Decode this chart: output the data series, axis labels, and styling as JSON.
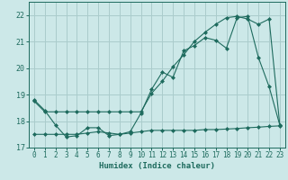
{
  "xlabel": "Humidex (Indice chaleur)",
  "background_color": "#cce8e8",
  "grid_color": "#aacccc",
  "line_color": "#1e6b5e",
  "xlim": [
    -0.5,
    23.5
  ],
  "ylim": [
    17.0,
    22.5
  ],
  "yticks": [
    17,
    18,
    19,
    20,
    21,
    22
  ],
  "xticks": [
    0,
    1,
    2,
    3,
    4,
    5,
    6,
    7,
    8,
    9,
    10,
    11,
    12,
    13,
    14,
    15,
    16,
    17,
    18,
    19,
    20,
    21,
    22,
    23
  ],
  "line1_x": [
    0,
    1,
    2,
    3,
    4,
    5,
    6,
    7,
    8,
    9,
    10,
    11,
    12,
    13,
    14,
    15,
    16,
    17,
    18,
    19,
    20,
    21,
    22,
    23
  ],
  "line1_y": [
    18.8,
    18.4,
    17.85,
    17.4,
    17.45,
    17.75,
    17.75,
    17.45,
    17.5,
    17.6,
    18.3,
    19.2,
    19.85,
    19.65,
    20.65,
    20.85,
    21.15,
    21.05,
    20.75,
    21.9,
    21.95,
    20.4,
    19.3,
    17.85
  ],
  "line2_x": [
    0,
    1,
    2,
    3,
    4,
    5,
    6,
    7,
    8,
    9,
    10,
    11,
    12,
    13,
    14,
    15,
    16,
    17,
    18,
    19,
    20,
    21,
    22,
    23
  ],
  "line2_y": [
    18.75,
    18.35,
    18.35,
    18.35,
    18.35,
    18.35,
    18.35,
    18.35,
    18.35,
    18.35,
    18.35,
    19.05,
    19.5,
    20.05,
    20.5,
    21.0,
    21.35,
    21.65,
    21.9,
    21.95,
    21.85,
    21.65,
    21.85,
    17.85
  ],
  "line3_x": [
    0,
    1,
    2,
    3,
    4,
    5,
    6,
    7,
    8,
    9,
    10,
    11,
    12,
    13,
    14,
    15,
    16,
    17,
    18,
    19,
    20,
    21,
    22,
    23
  ],
  "line3_y": [
    17.5,
    17.5,
    17.5,
    17.5,
    17.5,
    17.55,
    17.6,
    17.55,
    17.5,
    17.55,
    17.6,
    17.65,
    17.65,
    17.65,
    17.65,
    17.65,
    17.68,
    17.68,
    17.7,
    17.72,
    17.75,
    17.77,
    17.8,
    17.82
  ]
}
